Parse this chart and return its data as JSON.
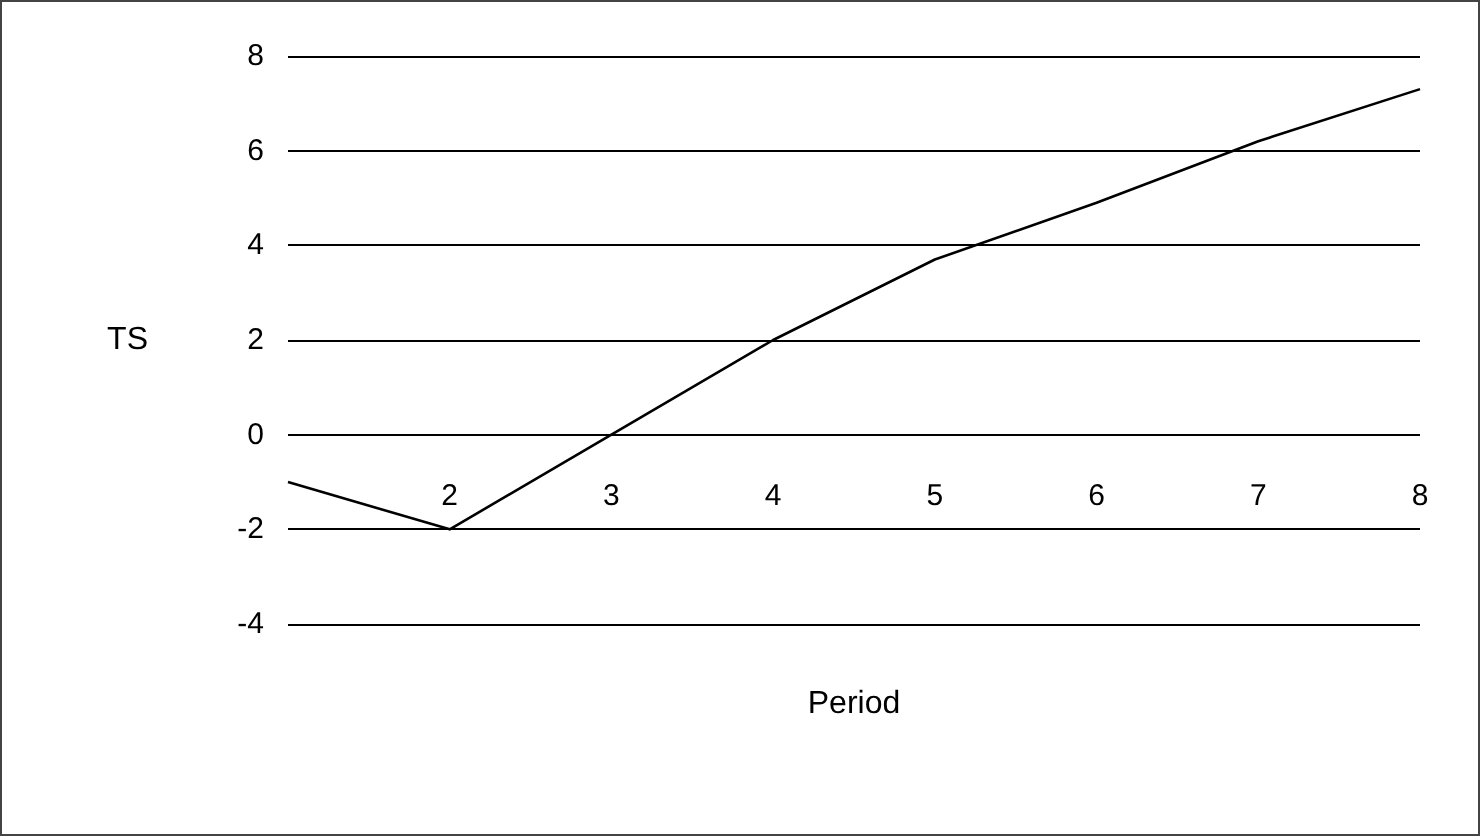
{
  "chart_data": {
    "type": "line",
    "xlabel": "Period",
    "ylabel": "TS",
    "categories": [
      null,
      "2",
      "3",
      "4",
      "5",
      "6",
      "7",
      "8"
    ],
    "series": [
      {
        "color": "#000000",
        "values": [
          -1,
          -2,
          0,
          2,
          3.7,
          4.9,
          6.2,
          7.3
        ]
      }
    ],
    "ylim": [
      -4,
      8
    ],
    "yticks": [
      -4,
      -2,
      0,
      2,
      4,
      6,
      8
    ],
    "grid": "y",
    "marker": "none",
    "line_style": "solid"
  }
}
